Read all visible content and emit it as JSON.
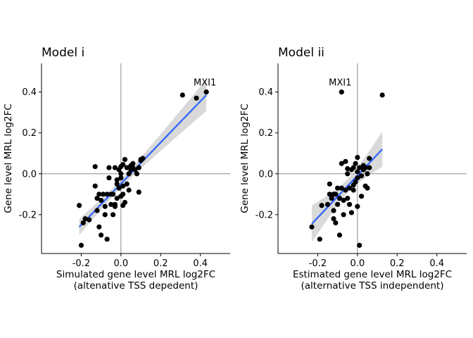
{
  "chart_data": [
    {
      "type": "scatter",
      "title": "Model i",
      "xlabel": "Simulated gene level MRL log2FC",
      "xlabel_sub": "(altenative TSS depedent)",
      "ylabel": "Gene level MRL log2FC",
      "xlim": [
        -0.4,
        0.55
      ],
      "ylim": [
        -0.39,
        0.54
      ],
      "xticks": [
        -0.2,
        0.0,
        0.2,
        0.4
      ],
      "yticks": [
        -0.2,
        0.0,
        0.2,
        0.4
      ],
      "xtick_labels": [
        "-0.2",
        "0.0",
        "0.2",
        "0.4"
      ],
      "ytick_labels": [
        "-0.2",
        "0.0",
        "0.2",
        "0.4"
      ],
      "reference_lines": {
        "x": 0,
        "y": 0
      },
      "grid": false,
      "point_color": "#000000",
      "fit": {
        "method": "linear",
        "color": "#3366ff",
        "x": [
          -0.21,
          0.43
        ],
        "y": [
          -0.26,
          0.385
        ],
        "ci_color": "#bfbfbf"
      },
      "annotations": [
        {
          "text": "MXI1",
          "x": 0.43,
          "y": 0.4
        }
      ],
      "points": [
        {
          "x": 0.43,
          "y": 0.4
        },
        {
          "x": 0.38,
          "y": 0.37
        },
        {
          "x": 0.31,
          "y": 0.385
        },
        {
          "x": -0.21,
          "y": -0.155
        },
        {
          "x": -0.2,
          "y": -0.35
        },
        {
          "x": -0.19,
          "y": -0.24
        },
        {
          "x": -0.18,
          "y": -0.22
        },
        {
          "x": -0.13,
          "y": 0.035
        },
        {
          "x": -0.13,
          "y": -0.06
        },
        {
          "x": -0.12,
          "y": -0.12
        },
        {
          "x": -0.12,
          "y": -0.18
        },
        {
          "x": -0.11,
          "y": -0.1
        },
        {
          "x": -0.11,
          "y": -0.26
        },
        {
          "x": -0.1,
          "y": -0.3
        },
        {
          "x": -0.1,
          "y": -0.13
        },
        {
          "x": -0.09,
          "y": -0.1
        },
        {
          "x": -0.08,
          "y": -0.2
        },
        {
          "x": -0.07,
          "y": -0.1
        },
        {
          "x": -0.07,
          "y": -0.32
        },
        {
          "x": -0.06,
          "y": -0.02
        },
        {
          "x": -0.06,
          "y": 0.03
        },
        {
          "x": -0.05,
          "y": -0.15
        },
        {
          "x": -0.05,
          "y": -0.1
        },
        {
          "x": -0.04,
          "y": -0.1
        },
        {
          "x": -0.04,
          "y": -0.2
        },
        {
          "x": -0.03,
          "y": -0.16
        },
        {
          "x": -0.03,
          "y": 0.03
        },
        {
          "x": -0.02,
          "y": -0.05
        },
        {
          "x": -0.02,
          "y": -0.12
        },
        {
          "x": -0.01,
          "y": -0.07
        },
        {
          "x": -0.01,
          "y": 0.02
        },
        {
          "x": 0.0,
          "y": -0.02
        },
        {
          "x": 0.0,
          "y": -0.11
        },
        {
          "x": 0.0,
          "y": 0.035
        },
        {
          "x": 0.01,
          "y": -0.06
        },
        {
          "x": 0.01,
          "y": -0.1
        },
        {
          "x": 0.01,
          "y": 0.045
        },
        {
          "x": 0.02,
          "y": -0.14
        },
        {
          "x": 0.02,
          "y": 0.07
        },
        {
          "x": 0.03,
          "y": -0.05
        },
        {
          "x": 0.03,
          "y": 0.03
        },
        {
          "x": 0.04,
          "y": -0.08
        },
        {
          "x": 0.04,
          "y": 0.0
        },
        {
          "x": 0.05,
          "y": 0.04
        },
        {
          "x": 0.05,
          "y": 0.02
        },
        {
          "x": 0.06,
          "y": 0.03
        },
        {
          "x": 0.06,
          "y": 0.05
        },
        {
          "x": 0.07,
          "y": 0.02
        },
        {
          "x": 0.08,
          "y": 0.0
        },
        {
          "x": 0.09,
          "y": -0.09
        },
        {
          "x": 0.09,
          "y": 0.03
        },
        {
          "x": 0.1,
          "y": 0.07
        },
        {
          "x": 0.1,
          "y": 0.065
        },
        {
          "x": 0.11,
          "y": 0.075
        },
        {
          "x": -0.16,
          "y": -0.225
        },
        {
          "x": -0.08,
          "y": -0.16
        },
        {
          "x": -0.02,
          "y": -0.03
        },
        {
          "x": 0.01,
          "y": -0.155
        },
        {
          "x": -0.03,
          "y": -0.15
        },
        {
          "x": 0.0,
          "y": 0.0
        }
      ]
    },
    {
      "type": "scatter",
      "title": "Model ii",
      "xlabel": "Estimated gene level MRL log2FC",
      "xlabel_sub": "(alternative TSS independent)",
      "ylabel": "Gene level MRL log2FC",
      "xlim": [
        -0.4,
        0.55
      ],
      "ylim": [
        -0.39,
        0.54
      ],
      "xticks": [
        -0.2,
        0.0,
        0.2,
        0.4
      ],
      "yticks": [
        -0.2,
        0.0,
        0.2,
        0.4
      ],
      "xtick_labels": [
        "-0.2",
        "0.0",
        "0.2",
        "0.4"
      ],
      "ytick_labels": [
        "-0.2",
        "0.0",
        "0.2",
        "0.4"
      ],
      "reference_lines": {
        "x": 0,
        "y": 0
      },
      "grid": false,
      "point_color": "#000000",
      "fit": {
        "method": "linear",
        "color": "#3366ff",
        "x": [
          -0.23,
          0.125
        ],
        "y": [
          -0.245,
          0.12
        ],
        "ci_color": "#bfbfbf"
      },
      "annotations": [
        {
          "text": "MXI1",
          "x": -0.08,
          "y": 0.4
        }
      ],
      "points": [
        {
          "x": -0.08,
          "y": 0.4
        },
        {
          "x": 0.125,
          "y": 0.385
        },
        {
          "x": -0.23,
          "y": -0.26
        },
        {
          "x": -0.19,
          "y": -0.32
        },
        {
          "x": -0.18,
          "y": -0.155
        },
        {
          "x": -0.15,
          "y": -0.15
        },
        {
          "x": -0.14,
          "y": -0.05
        },
        {
          "x": -0.14,
          "y": -0.1
        },
        {
          "x": -0.13,
          "y": -0.12
        },
        {
          "x": -0.12,
          "y": -0.18
        },
        {
          "x": -0.12,
          "y": -0.22
        },
        {
          "x": -0.11,
          "y": -0.24
        },
        {
          "x": -0.11,
          "y": -0.1
        },
        {
          "x": -0.1,
          "y": -0.07
        },
        {
          "x": -0.1,
          "y": -0.15
        },
        {
          "x": -0.09,
          "y": -0.3
        },
        {
          "x": -0.09,
          "y": -0.12
        },
        {
          "x": -0.08,
          "y": -0.07
        },
        {
          "x": -0.08,
          "y": 0.05
        },
        {
          "x": -0.07,
          "y": -0.13
        },
        {
          "x": -0.07,
          "y": -0.2
        },
        {
          "x": -0.06,
          "y": 0.06
        },
        {
          "x": -0.06,
          "y": -0.08
        },
        {
          "x": -0.05,
          "y": 0.025
        },
        {
          "x": -0.05,
          "y": -0.12
        },
        {
          "x": -0.04,
          "y": -0.07
        },
        {
          "x": -0.04,
          "y": -0.15
        },
        {
          "x": -0.03,
          "y": 0.02
        },
        {
          "x": -0.03,
          "y": -0.19
        },
        {
          "x": -0.02,
          "y": 0.03
        },
        {
          "x": -0.02,
          "y": -0.08
        },
        {
          "x": -0.01,
          "y": -0.04
        },
        {
          "x": -0.01,
          "y": 0.05
        },
        {
          "x": 0.0,
          "y": 0.08
        },
        {
          "x": 0.0,
          "y": -0.02
        },
        {
          "x": 0.0,
          "y": -0.16
        },
        {
          "x": 0.01,
          "y": 0.03
        },
        {
          "x": 0.01,
          "y": -0.35
        },
        {
          "x": 0.02,
          "y": -0.01
        },
        {
          "x": 0.02,
          "y": -0.11
        },
        {
          "x": 0.03,
          "y": 0.04
        },
        {
          "x": 0.03,
          "y": 0.02
        },
        {
          "x": 0.04,
          "y": -0.06
        },
        {
          "x": 0.04,
          "y": 0.03
        },
        {
          "x": 0.05,
          "y": 0.0
        },
        {
          "x": 0.05,
          "y": -0.07
        },
        {
          "x": 0.06,
          "y": 0.03
        },
        {
          "x": 0.06,
          "y": 0.075
        },
        {
          "x": -0.02,
          "y": -0.055
        },
        {
          "x": -0.12,
          "y": -0.1
        },
        {
          "x": -0.05,
          "y": 0.0
        },
        {
          "x": 0.0,
          "y": 0.01
        }
      ]
    }
  ]
}
